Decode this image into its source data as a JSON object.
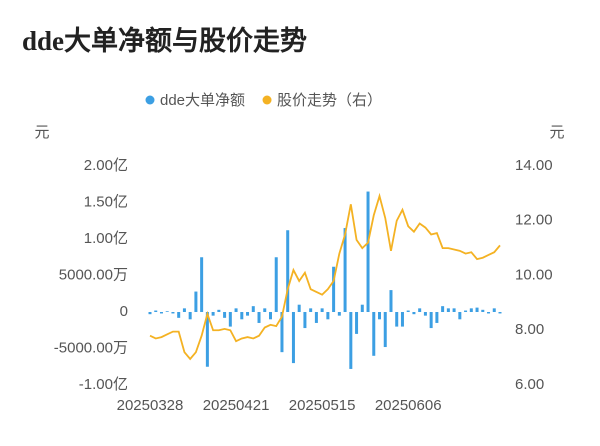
{
  "chart_data": {
    "type": "bar-line",
    "title": "dde大单净额与股价走势",
    "y_label": "元",
    "y2_label": "元",
    "categories": [
      "20250328",
      null,
      null,
      null,
      null,
      null,
      null,
      null,
      null,
      null,
      null,
      null,
      null,
      null,
      null,
      "20250421",
      null,
      null,
      null,
      null,
      null,
      null,
      null,
      null,
      null,
      null,
      null,
      null,
      null,
      null,
      "20250515",
      null,
      null,
      null,
      null,
      null,
      null,
      null,
      null,
      null,
      null,
      null,
      null,
      null,
      null,
      "20250606",
      null,
      null,
      null,
      null,
      null,
      null,
      null,
      null,
      null,
      null,
      null,
      null,
      null,
      null,
      null,
      null
    ],
    "series": [
      {
        "name": "dde大单净额",
        "color": "#3c9fe3",
        "values": [
          -0.03,
          0.02,
          -0.02,
          0.01,
          -0.02,
          -0.08,
          0.05,
          -0.1,
          0.28,
          0.75,
          -0.75,
          -0.05,
          0.03,
          -0.08,
          -0.2,
          0.05,
          -0.1,
          -0.05,
          0.08,
          -0.15,
          0.05,
          -0.1,
          0.75,
          -0.55,
          1.12,
          -0.7,
          0.1,
          -0.22,
          0.05,
          -0.15,
          0.05,
          -0.1,
          0.62,
          -0.05,
          1.15,
          -0.78,
          -0.3,
          0.1,
          1.65,
          -0.6,
          -0.1,
          -0.48,
          0.3,
          -0.2,
          -0.2,
          0.02,
          -0.03,
          0.05,
          -0.05,
          -0.22,
          -0.15,
          0.08,
          0.05,
          0.05,
          -0.1,
          0.02,
          0.05,
          0.06,
          0.03,
          -0.02,
          0.05,
          -0.02
        ]
      },
      {
        "name": "股价走势（右）",
        "color": "#f4b223",
        "axis": "y2",
        "values": [
          7.8,
          7.7,
          7.75,
          7.85,
          7.95,
          7.95,
          7.2,
          6.95,
          7.2,
          7.8,
          8.6,
          8.0,
          8.0,
          8.05,
          8.0,
          7.6,
          7.7,
          7.75,
          7.7,
          7.8,
          8.1,
          8.2,
          8.15,
          8.5,
          9.5,
          10.2,
          9.8,
          10.1,
          9.5,
          9.4,
          9.3,
          9.5,
          9.8,
          10.8,
          11.5,
          12.6,
          11.3,
          11.0,
          11.2,
          12.2,
          12.9,
          12.1,
          10.9,
          12.0,
          12.4,
          11.8,
          11.6,
          11.9,
          11.75,
          11.5,
          11.55,
          11.0,
          11.0,
          10.95,
          10.9,
          10.8,
          10.85,
          10.6,
          10.65,
          10.75,
          10.85,
          11.1
        ]
      }
    ],
    "ylim": [
      -1,
      2
    ],
    "yticks": [
      {
        "value": 2,
        "label": "2.00亿"
      },
      {
        "value": 1.5,
        "label": "1.50亿"
      },
      {
        "value": 1,
        "label": "1.00亿"
      },
      {
        "value": 0.5,
        "label": "5000.00万"
      },
      0,
      {
        "value": -0.5,
        "label": "-5000.00万"
      },
      {
        "value": -1,
        "label": "-1.00亿"
      }
    ],
    "y2lim": [
      6,
      14
    ],
    "y2ticks": [
      {
        "value": 14,
        "label": "14.00"
      },
      {
        "value": 12,
        "label": "12.00"
      },
      {
        "value": 10,
        "label": "10.00"
      },
      {
        "value": 8,
        "label": "8.00"
      },
      {
        "value": 6,
        "label": "6.00"
      }
    ]
  }
}
